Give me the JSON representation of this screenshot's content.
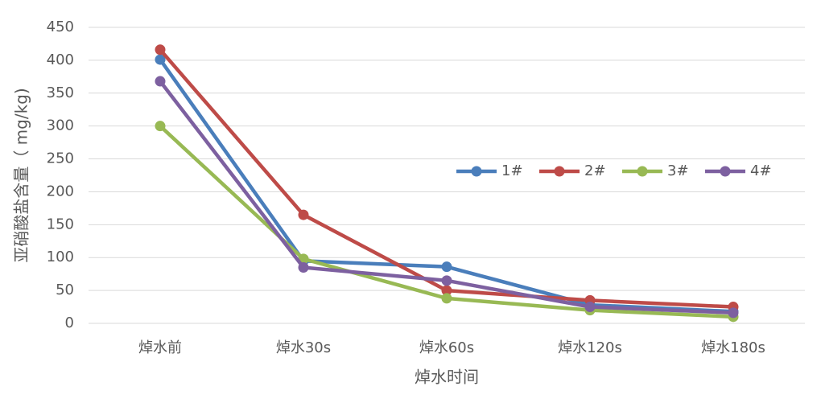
{
  "chart_data": {
    "type": "line",
    "x_label": "焯水时间",
    "y_label": "亚硝酸盐含量（ mg/kg)",
    "categories": [
      "焯水前",
      "焯水30s",
      "焯水60s",
      "焯水120s",
      "焯水180s"
    ],
    "series": [
      {
        "name": "1#",
        "color": "#4a7ebb",
        "values": [
          401,
          95,
          86,
          28,
          18
        ]
      },
      {
        "name": "2#",
        "color": "#be4b48",
        "values": [
          416,
          165,
          50,
          35,
          25
        ]
      },
      {
        "name": "3#",
        "color": "#98b954",
        "values": [
          300,
          98,
          38,
          20,
          10
        ]
      },
      {
        "name": "4#",
        "color": "#7d60a0",
        "values": [
          368,
          85,
          65,
          25,
          16
        ]
      }
    ],
    "ylim": [
      0,
      450
    ],
    "yticks": [
      0,
      50,
      100,
      150,
      200,
      250,
      300,
      350,
      400,
      450
    ],
    "grid": true
  }
}
